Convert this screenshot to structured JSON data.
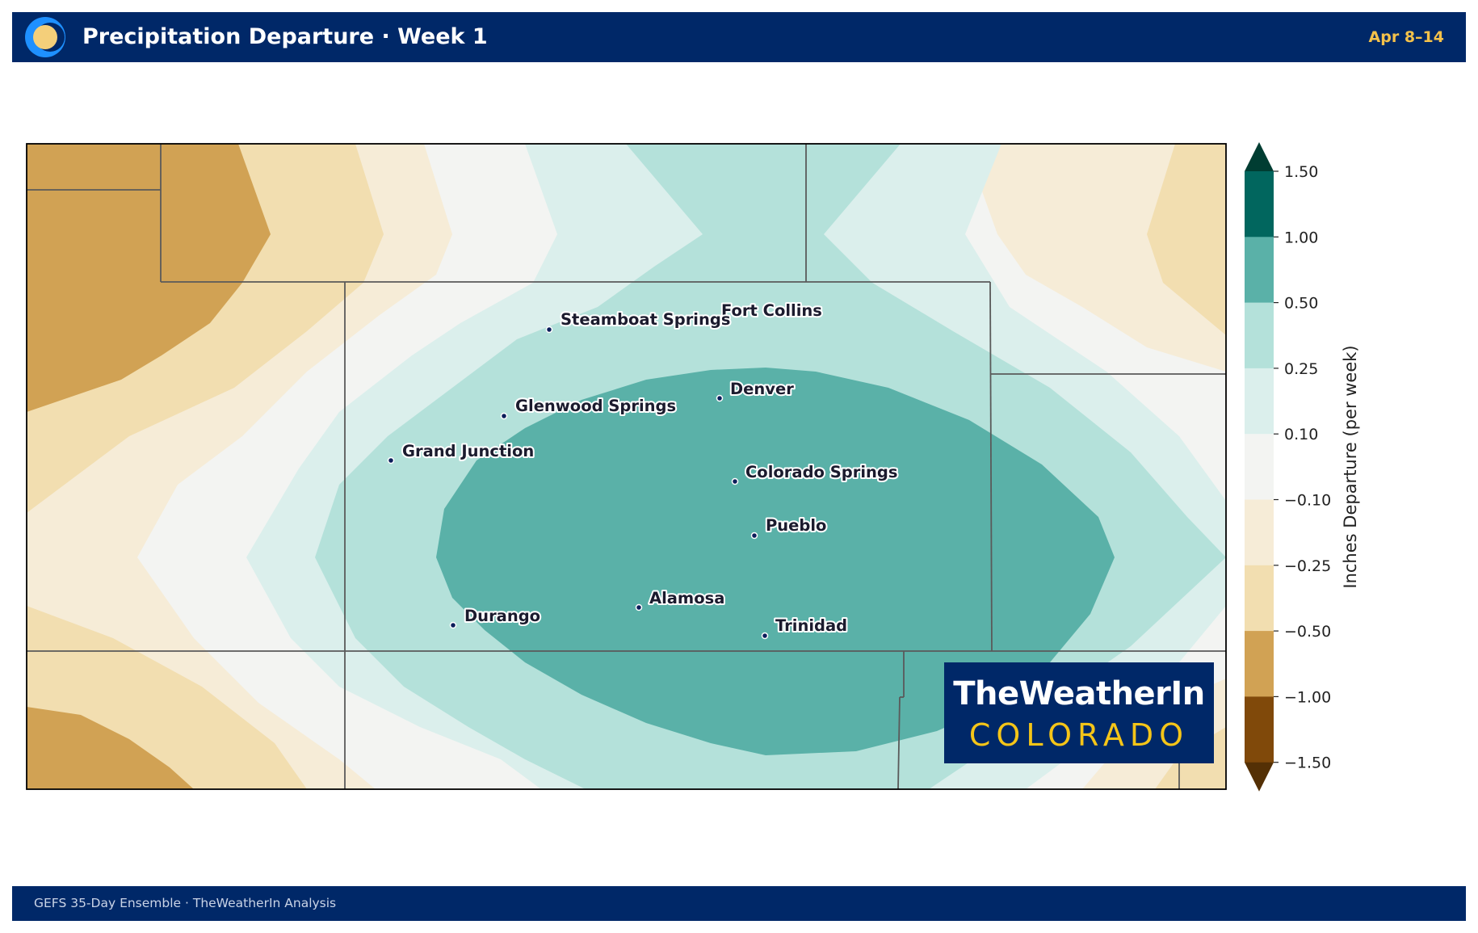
{
  "header": {
    "title": "Precipitation Departure · Week 1",
    "dates": "Apr 8–14",
    "logo_icon": "sun-crescent-logo-icon"
  },
  "footer": {
    "credit": "GEFS 35-Day Ensemble  ·  TheWeatherIn Analysis"
  },
  "map": {
    "cities": [
      {
        "name": "Fort Collins"
      },
      {
        "name": "Steamboat Springs"
      },
      {
        "name": "Denver"
      },
      {
        "name": "Glenwood Springs"
      },
      {
        "name": "Grand Junction"
      },
      {
        "name": "Colorado Springs"
      },
      {
        "name": "Pueblo"
      },
      {
        "name": "Alamosa"
      },
      {
        "name": "Durango"
      },
      {
        "name": "Trinidad"
      }
    ]
  },
  "colorbar": {
    "label": "Inches Departure (per week)",
    "ticks": [
      "1.50",
      "1.00",
      "0.50",
      "0.25",
      "0.10",
      "−0.10",
      "−0.25",
      "−0.50",
      "−1.00",
      "−1.50"
    ],
    "bins": [
      {
        "from": 1.0,
        "to": 1.5,
        "color": "#01665e"
      },
      {
        "from": 0.5,
        "to": 1.0,
        "color": "#5ab1a8"
      },
      {
        "from": 0.25,
        "to": 0.5,
        "color": "#b4e1da"
      },
      {
        "from": 0.1,
        "to": 0.25,
        "color": "#dbefec"
      },
      {
        "from": -0.1,
        "to": 0.1,
        "color": "#f3f4f2"
      },
      {
        "from": -0.25,
        "to": -0.1,
        "color": "#f6ecd7"
      },
      {
        "from": -0.5,
        "to": -0.25,
        "color": "#f2deb0"
      },
      {
        "from": -1.0,
        "to": -0.5,
        "color": "#d1a254"
      },
      {
        "from": -1.5,
        "to": -1.0,
        "color": "#80490a"
      }
    ],
    "over_color": "#003d32",
    "under_color": "#543005"
  },
  "brand": {
    "line1": "TheWeatherIn",
    "line2": "COLORADO"
  }
}
